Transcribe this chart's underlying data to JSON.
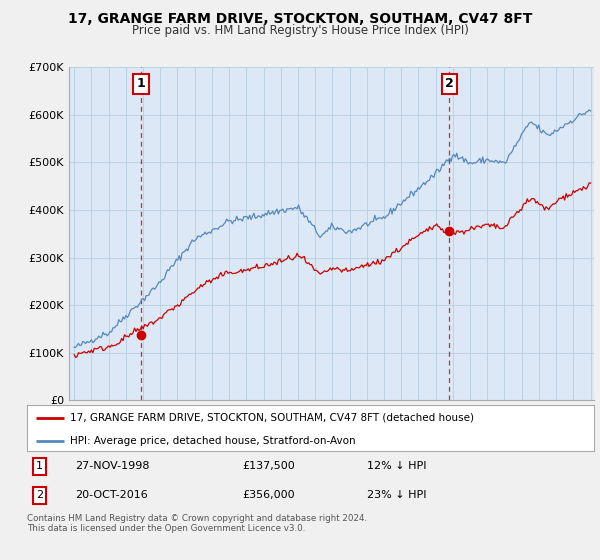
{
  "title": "17, GRANGE FARM DRIVE, STOCKTON, SOUTHAM, CV47 8FT",
  "subtitle": "Price paid vs. HM Land Registry's House Price Index (HPI)",
  "legend_red": "17, GRANGE FARM DRIVE, STOCKTON, SOUTHAM, CV47 8FT (detached house)",
  "legend_blue": "HPI: Average price, detached house, Stratford-on-Avon",
  "transaction1_date": "27-NOV-1998",
  "transaction1_price": "£137,500",
  "transaction1_hpi": "12% ↓ HPI",
  "transaction2_date": "20-OCT-2016",
  "transaction2_price": "£356,000",
  "transaction2_hpi": "23% ↓ HPI",
  "footer": "Contains HM Land Registry data © Crown copyright and database right 2024.\nThis data is licensed under the Open Government Licence v3.0.",
  "ylim": [
    0,
    700000
  ],
  "yticks": [
    0,
    100000,
    200000,
    300000,
    400000,
    500000,
    600000,
    700000
  ],
  "ytick_labels": [
    "£0",
    "£100K",
    "£200K",
    "£300K",
    "£400K",
    "£500K",
    "£600K",
    "£700K"
  ],
  "background_color": "#f0f0f0",
  "plot_bg_color": "#dce8f5",
  "grid_color": "#b8cfe0",
  "red_color": "#cc0000",
  "blue_color": "#5588bb",
  "marker1_x": 1998.9,
  "marker1_y": 137500,
  "marker2_x": 2016.8,
  "marker2_y": 356000,
  "vline1_x": 1998.9,
  "vline2_x": 2016.8,
  "xmin": 1995.0,
  "xmax": 2025.2
}
